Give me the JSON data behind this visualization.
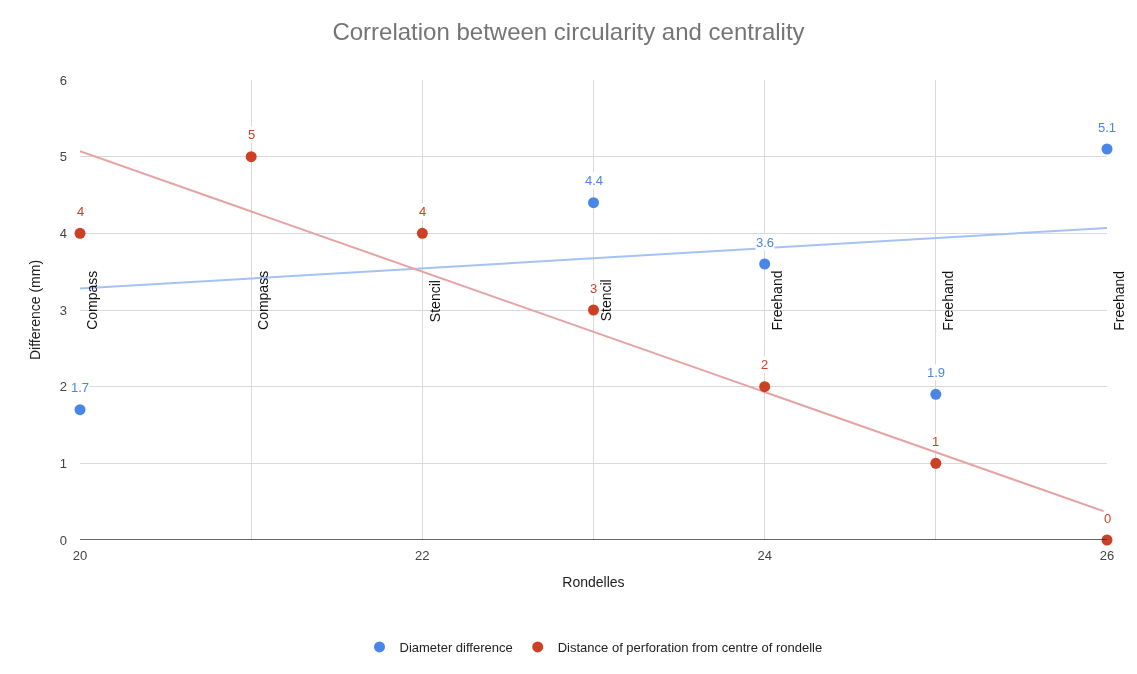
{
  "chart_data": {
    "type": "scatter",
    "title": "Correlation between circularity and centrality",
    "xlabel": "Rondelles",
    "ylabel": "Difference (mm)",
    "xlim": [
      20,
      26
    ],
    "xticks": [
      20,
      {
        "value": 21,
        "label": null
      },
      22,
      {
        "value": 23,
        "label": null
      },
      24,
      {
        "value": 25,
        "label": null
      },
      26
    ],
    "ylim": [
      0,
      6
    ],
    "yticks": [
      0,
      1,
      2,
      3,
      4,
      5,
      6
    ],
    "grid": true,
    "legend": "bottom",
    "series": [
      {
        "name": "Diameter difference",
        "color": "#4a86e8",
        "marker": "circle",
        "x": [
          20,
          23,
          24,
          25,
          26
        ],
        "values": [
          1.7,
          4.4,
          3.6,
          1.9,
          5.1
        ],
        "value_labels": [
          "1.7",
          "4.4",
          "3.6",
          "1.9",
          "5.1"
        ]
      },
      {
        "name": "Distance of perforation from centre of rondelle",
        "color": "#cc4125",
        "marker": "circle",
        "x": [
          20,
          21,
          22,
          23,
          24,
          25,
          26
        ],
        "values": [
          4,
          5,
          4,
          3,
          2,
          1,
          0
        ],
        "value_labels": [
          "4",
          "5",
          "4",
          "3",
          "2",
          "1",
          "0"
        ]
      },
      {
        "type": "line",
        "marker": "none",
        "color": "#a4c2f4",
        "x": [
          20,
          26
        ],
        "values": [
          3.28,
          4.07
        ]
      },
      {
        "type": "line",
        "marker": "none",
        "color": "#e6a3a3",
        "x": [
          20,
          26
        ],
        "values": [
          5.07,
          0.36
        ]
      }
    ],
    "annotations": [
      "Compass",
      "Compass",
      "Stencil",
      "Stencil",
      "Freehand",
      "Freehand",
      "Freehand"
    ]
  }
}
